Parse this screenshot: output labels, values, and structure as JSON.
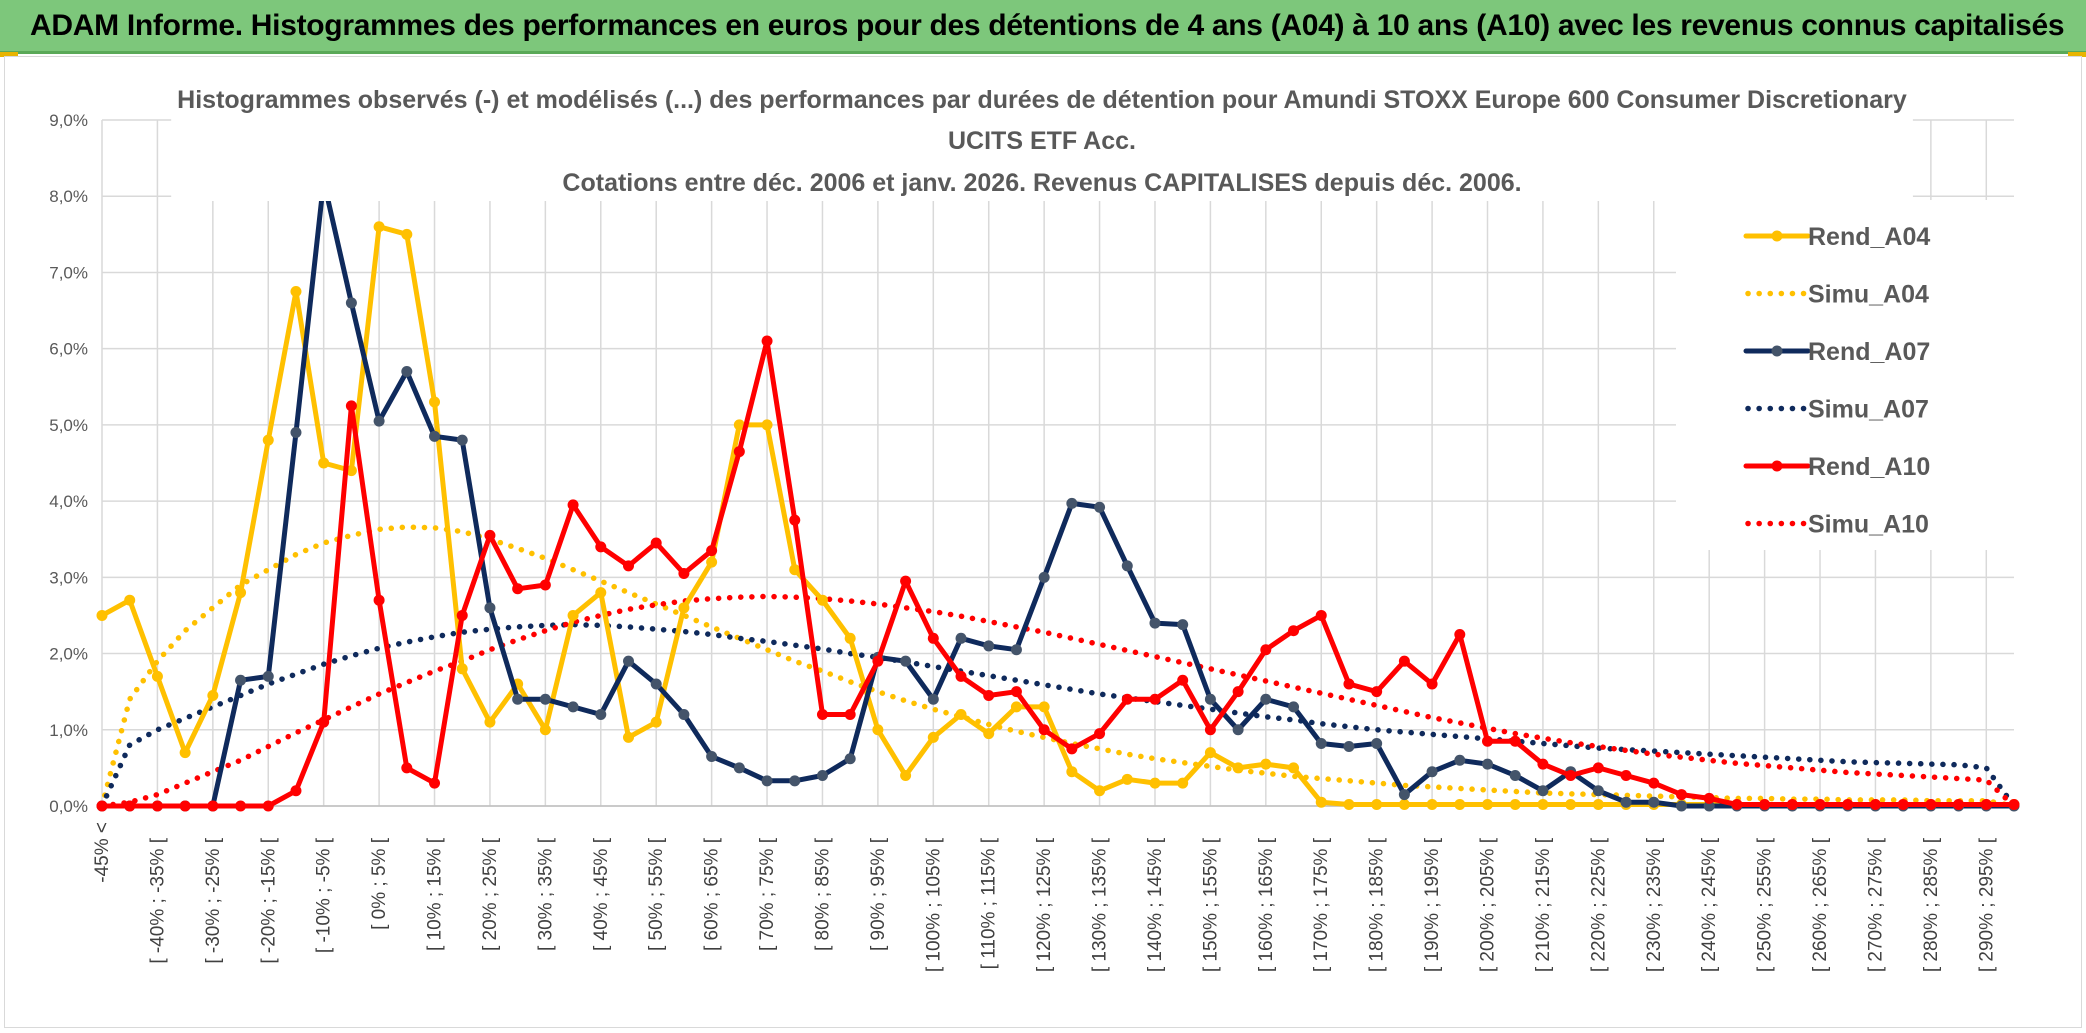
{
  "banner": {
    "title": "ADAM Informe. Histogrammes des performances en euros pour des détentions de 4 ans (A04) à 10 ans (A10) avec les revenus connus capitalisés",
    "background": "#7dc77b"
  },
  "chart_data": {
    "type": "line",
    "title_lines": [
      "Histogrammes observés (-) et modélisés (...) des performances par durées de détention pour Amundi STOXX Europe 600 Consumer Discretionary",
      "UCITS ETF Acc.",
      "Cotations entre déc. 2006 et janv. 2026. Revenus CAPITALISES depuis déc. 2006."
    ],
    "ylim": [
      0,
      9
    ],
    "y_ticks": [
      "0,0%",
      "1,0%",
      "2,0%",
      "3,0%",
      "4,0%",
      "5,0%",
      "6,0%",
      "7,0%",
      "8,0%",
      "9,0%"
    ],
    "grid": true,
    "legend_position": "right",
    "x_labels": [
      "-45% <",
      "[ -40% ; -35% [",
      "[ -30% ; -25% [",
      "[ -20% ; -15% [",
      "[ -10% ; -5% [",
      "[ 0% ; 5% [",
      "[ 10% ; 15% [",
      "[ 20% ; 25% [",
      "[ 30% ; 35% [",
      "[ 40% ; 45% [",
      "[ 50% ; 55% [",
      "[ 60% ; 65% [",
      "[ 70% ; 75% [",
      "[ 80% ; 85% [",
      "[ 90% ; 95% [",
      "[ 100% ; 105% [",
      "[ 110% ; 115% [",
      "[ 120% ; 125% [",
      "[ 130% ; 135% [",
      "[ 140% ; 145% [",
      "[ 150% ; 155% [",
      "[ 160% ; 165% [",
      "[ 170% ; 175% [",
      "[ 180% ; 185% [",
      "[ 190% ; 195% [",
      "[ 200% ; 205% [",
      "[ 210% ; 215% [",
      "[ 220% ; 225% [",
      "[ 230% ; 235% [",
      "[ 240% ; 245% [",
      "[ 250% ; 255% [",
      "[ 260% ; 265% [",
      "[ 270% ; 275% [",
      "[ 280% ; 285% [",
      "[ 290% ; 295% ["
    ],
    "x_count": 70,
    "series": [
      {
        "name": "Rend_A04",
        "color": "#ffc000",
        "style": "solid",
        "values": [
          2.5,
          2.7,
          1.7,
          0.7,
          1.45,
          2.8,
          4.8,
          6.75,
          4.5,
          4.4,
          7.6,
          7.5,
          5.3,
          1.8,
          1.1,
          1.6,
          1.0,
          2.5,
          2.8,
          0.9,
          1.1,
          2.6,
          3.2,
          5.0,
          5.0,
          3.1,
          2.7,
          2.2,
          1.0,
          0.4,
          0.9,
          1.2,
          0.95,
          1.3,
          1.3,
          0.45,
          0.2,
          0.35,
          0.3,
          0.3,
          0.7,
          0.5,
          0.55,
          0.5,
          0.05,
          0.02,
          0.02,
          0.02,
          0.02,
          0.02,
          0.02,
          0.02,
          0.02,
          0.02,
          0.02,
          0.02,
          0.02,
          0.02,
          0.02,
          0.02,
          0.02,
          0.02,
          0.02,
          0.02,
          0.02,
          0.02,
          0.02,
          0.02,
          0.02,
          0.02
        ]
      },
      {
        "name": "Simu_A04",
        "color": "#ffc000",
        "style": "dotted",
        "values": [
          0.0,
          1.4,
          1.9,
          2.3,
          2.6,
          2.9,
          3.1,
          3.3,
          3.45,
          3.55,
          3.63,
          3.66,
          3.65,
          3.6,
          3.5,
          3.38,
          3.25,
          3.1,
          2.95,
          2.8,
          2.65,
          2.5,
          2.35,
          2.2,
          2.05,
          1.9,
          1.77,
          1.63,
          1.5,
          1.38,
          1.27,
          1.17,
          1.07,
          0.98,
          0.9,
          0.82,
          0.75,
          0.68,
          0.62,
          0.57,
          0.52,
          0.47,
          0.43,
          0.39,
          0.36,
          0.33,
          0.3,
          0.27,
          0.25,
          0.23,
          0.21,
          0.19,
          0.17,
          0.16,
          0.15,
          0.14,
          0.13,
          0.12,
          0.11,
          0.1,
          0.1,
          0.09,
          0.09,
          0.08,
          0.08,
          0.08,
          0.07,
          0.07,
          0.07,
          0.0
        ]
      },
      {
        "name": "Rend_A07",
        "color": "#0f2a5c",
        "style": "solid",
        "values": [
          0.0,
          0.0,
          0.0,
          0.0,
          0.0,
          1.65,
          1.7,
          4.9,
          8.2,
          6.6,
          5.05,
          5.7,
          4.85,
          4.8,
          2.6,
          1.4,
          1.4,
          1.3,
          1.2,
          1.9,
          1.6,
          1.2,
          0.65,
          0.5,
          0.33,
          0.33,
          0.4,
          0.62,
          1.95,
          1.9,
          1.4,
          2.2,
          2.1,
          2.05,
          3.0,
          3.97,
          3.92,
          3.15,
          2.4,
          2.38,
          1.4,
          1.0,
          1.4,
          1.3,
          0.82,
          0.78,
          0.82,
          0.15,
          0.45,
          0.6,
          0.55,
          0.4,
          0.2,
          0.45,
          0.2,
          0.05,
          0.05,
          0.0,
          0.0,
          0.0,
          0.0,
          0.0,
          0.0,
          0.0,
          0.0,
          0.0,
          0.0,
          0.0,
          0.0,
          0.0
        ]
      },
      {
        "name": "Simu_A07",
        "color": "#0f2a5c",
        "style": "dotted",
        "values": [
          0.0,
          0.8,
          1.0,
          1.15,
          1.3,
          1.45,
          1.6,
          1.73,
          1.86,
          1.97,
          2.07,
          2.15,
          2.22,
          2.28,
          2.32,
          2.35,
          2.37,
          2.38,
          2.37,
          2.35,
          2.32,
          2.29,
          2.25,
          2.2,
          2.16,
          2.11,
          2.06,
          2.0,
          1.95,
          1.89,
          1.83,
          1.77,
          1.71,
          1.65,
          1.59,
          1.53,
          1.47,
          1.42,
          1.37,
          1.32,
          1.27,
          1.22,
          1.17,
          1.13,
          1.08,
          1.04,
          1.0,
          0.97,
          0.94,
          0.91,
          0.88,
          0.85,
          0.82,
          0.79,
          0.76,
          0.74,
          0.72,
          0.7,
          0.68,
          0.66,
          0.64,
          0.62,
          0.6,
          0.58,
          0.57,
          0.56,
          0.55,
          0.54,
          0.5,
          0.0
        ]
      },
      {
        "name": "Rend_A10",
        "color": "#ff0000",
        "style": "solid",
        "values": [
          0.0,
          0.0,
          0.0,
          0.0,
          0.0,
          0.0,
          0.0,
          0.2,
          1.1,
          5.25,
          2.7,
          0.5,
          0.3,
          2.5,
          3.55,
          2.85,
          2.9,
          3.95,
          3.4,
          3.15,
          3.45,
          3.05,
          3.35,
          4.65,
          6.1,
          3.75,
          1.2,
          1.2,
          1.9,
          2.95,
          2.2,
          1.7,
          1.45,
          1.5,
          1.0,
          0.75,
          0.95,
          1.4,
          1.4,
          1.65,
          1.0,
          1.5,
          2.05,
          2.3,
          2.5,
          1.6,
          1.5,
          1.9,
          1.6,
          2.25,
          0.85,
          0.85,
          0.55,
          0.4,
          0.5,
          0.4,
          0.3,
          0.15,
          0.1,
          0.02,
          0.02,
          0.02,
          0.02,
          0.02,
          0.02,
          0.02,
          0.02,
          0.02,
          0.02,
          0.02
        ]
      },
      {
        "name": "Simu_A10",
        "color": "#ff0000",
        "style": "dotted",
        "values": [
          0.0,
          0.05,
          0.15,
          0.3,
          0.45,
          0.6,
          0.78,
          0.96,
          1.13,
          1.3,
          1.47,
          1.62,
          1.77,
          1.9,
          2.05,
          2.18,
          2.3,
          2.41,
          2.5,
          2.58,
          2.64,
          2.69,
          2.72,
          2.74,
          2.75,
          2.74,
          2.72,
          2.69,
          2.65,
          2.6,
          2.55,
          2.49,
          2.42,
          2.35,
          2.28,
          2.2,
          2.12,
          2.04,
          1.96,
          1.88,
          1.8,
          1.72,
          1.64,
          1.56,
          1.48,
          1.4,
          1.32,
          1.24,
          1.16,
          1.09,
          1.02,
          0.95,
          0.89,
          0.83,
          0.78,
          0.73,
          0.68,
          0.64,
          0.6,
          0.56,
          0.53,
          0.5,
          0.47,
          0.44,
          0.42,
          0.4,
          0.38,
          0.36,
          0.34,
          0.0
        ]
      }
    ]
  }
}
